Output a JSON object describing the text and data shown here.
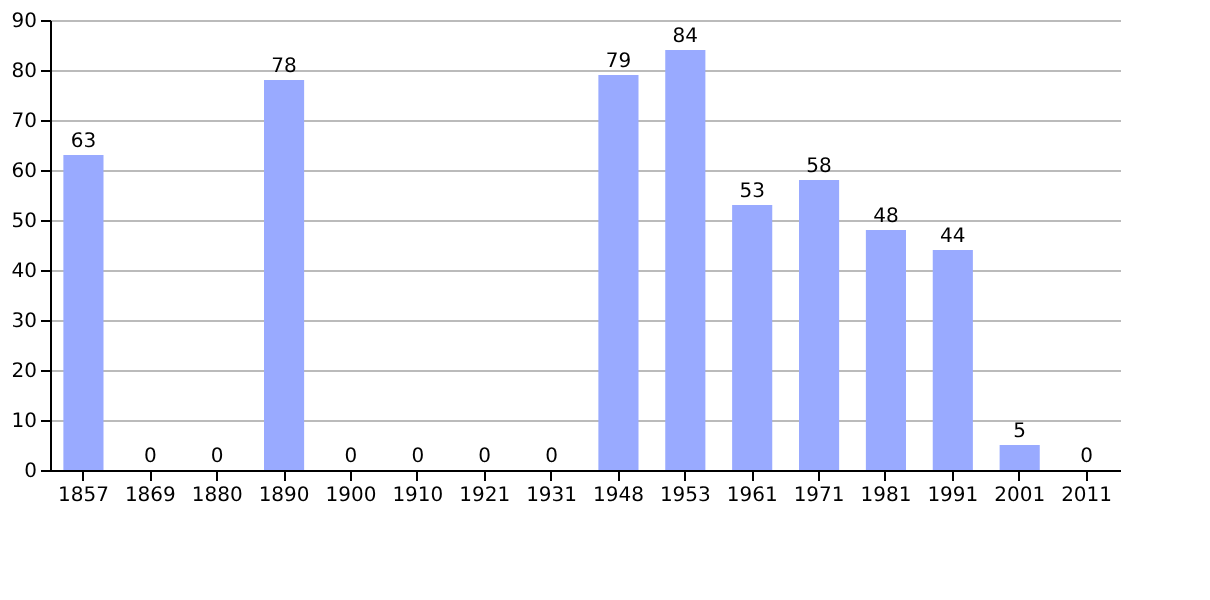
{
  "chart_data": {
    "type": "bar",
    "categories": [
      "1857",
      "1869",
      "1880",
      "1890",
      "1900",
      "1910",
      "1921",
      "1931",
      "1948",
      "1953",
      "1961",
      "1971",
      "1981",
      "1991",
      "2001",
      "2011"
    ],
    "values": [
      63,
      0,
      0,
      78,
      0,
      0,
      0,
      0,
      79,
      84,
      53,
      58,
      48,
      44,
      5,
      0
    ],
    "color": "#99aaff",
    "ylim": [
      0,
      90
    ],
    "yticks": [
      0,
      10,
      20,
      30,
      40,
      50,
      60,
      70,
      80,
      90
    ],
    "grid": "y",
    "data_labels": true
  }
}
